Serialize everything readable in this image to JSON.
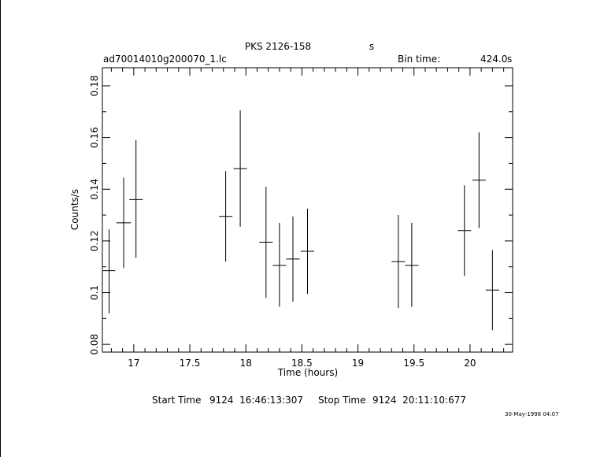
{
  "chart_data": {
    "type": "scatter",
    "title": "PKS 2126-158",
    "title_unit": "s",
    "filename": "ad70014010g200070_1.lc",
    "bin_time_label": "Bin time:",
    "bin_time_value": "424.0",
    "bin_time_unit": "s",
    "xlabel": "Time (hours)",
    "ylabel": "Counts/s",
    "xlim": [
      16.72,
      20.38
    ],
    "ylim": [
      0.077,
      0.187
    ],
    "x_ticks": [
      {
        "v": 17,
        "label": "17"
      },
      {
        "v": 17.5,
        "label": "17.5"
      },
      {
        "v": 18,
        "label": "18"
      },
      {
        "v": 18.5,
        "label": "18.5"
      },
      {
        "v": 19,
        "label": "19"
      },
      {
        "v": 19.5,
        "label": "19.5"
      },
      {
        "v": 20,
        "label": "20"
      }
    ],
    "y_ticks": [
      {
        "v": 0.08,
        "label": "0.08"
      },
      {
        "v": 0.1,
        "label": "0.1"
      },
      {
        "v": 0.12,
        "label": "0.12"
      },
      {
        "v": 0.14,
        "label": "0.14"
      },
      {
        "v": 0.16,
        "label": "0.16"
      },
      {
        "v": 0.18,
        "label": "0.18"
      }
    ],
    "grid": false,
    "series": [
      {
        "points": [
          {
            "x": 16.78,
            "xerr": 0.055,
            "y": 0.1085,
            "ylo": 0.092,
            "yhi": 0.1245
          },
          {
            "x": 16.91,
            "xerr": 0.065,
            "y": 0.127,
            "ylo": 0.1095,
            "yhi": 0.1445
          },
          {
            "x": 17.02,
            "xerr": 0.06,
            "y": 0.136,
            "ylo": 0.1135,
            "yhi": 0.159
          },
          {
            "x": 17.82,
            "xerr": 0.06,
            "y": 0.1295,
            "ylo": 0.112,
            "yhi": 0.147
          },
          {
            "x": 17.95,
            "xerr": 0.06,
            "y": 0.148,
            "ylo": 0.1255,
            "yhi": 0.1705
          },
          {
            "x": 18.18,
            "xerr": 0.06,
            "y": 0.1195,
            "ylo": 0.098,
            "yhi": 0.141
          },
          {
            "x": 18.3,
            "xerr": 0.06,
            "y": 0.1105,
            "ylo": 0.0945,
            "yhi": 0.127
          },
          {
            "x": 18.42,
            "xerr": 0.06,
            "y": 0.113,
            "ylo": 0.0965,
            "yhi": 0.1295
          },
          {
            "x": 18.55,
            "xerr": 0.06,
            "y": 0.116,
            "ylo": 0.0995,
            "yhi": 0.1325
          },
          {
            "x": 19.36,
            "xerr": 0.06,
            "y": 0.112,
            "ylo": 0.094,
            "yhi": 0.13
          },
          {
            "x": 19.48,
            "xerr": 0.06,
            "y": 0.1105,
            "ylo": 0.0945,
            "yhi": 0.127
          },
          {
            "x": 19.95,
            "xerr": 0.06,
            "y": 0.124,
            "ylo": 0.1065,
            "yhi": 0.1415
          },
          {
            "x": 20.08,
            "xerr": 0.06,
            "y": 0.1435,
            "ylo": 0.125,
            "yhi": 0.162
          },
          {
            "x": 20.2,
            "xerr": 0.06,
            "y": 0.101,
            "ylo": 0.0855,
            "yhi": 0.1165
          }
        ]
      }
    ]
  },
  "footer": {
    "start_label": "Start Time",
    "start_value": "9124  16:46:13:307",
    "stop_label": "Stop Time",
    "stop_value": "9124  20:11:10:677",
    "timestamp": "30-May-1998 04:07"
  }
}
